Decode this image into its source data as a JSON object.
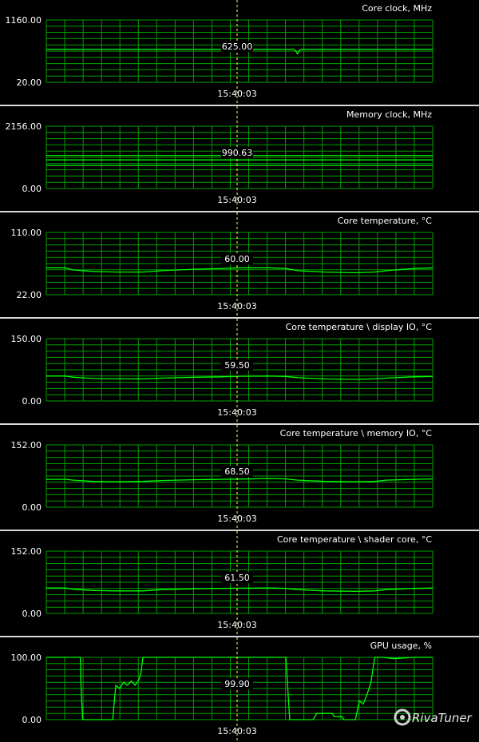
{
  "logo_text": "RivaTuner",
  "colors": {
    "background": "#000000",
    "grid": "#00a000",
    "trace": "#00ff00",
    "cursor": "#ffff66",
    "text": "#ffffff",
    "separator": "#d8d8d8"
  },
  "chart_data": [
    {
      "type": "line",
      "title": "Core clock, MHz",
      "ymax_label": "1160.00",
      "ymin_label": "20.00",
      "ylim": [
        20,
        1160
      ],
      "cursor_value": "625.00",
      "cursor_time": "15:40:03",
      "series": [
        {
          "x": [
            0,
            0.6,
            0.64,
            0.645,
            0.65,
            0.655,
            0.66,
            0.7,
            1
          ],
          "values": [
            625,
            625,
            625,
            600,
            540,
            600,
            625,
            625,
            625
          ]
        }
      ]
    },
    {
      "type": "line",
      "title": "Memory clock, MHz",
      "ymax_label": "2156.00",
      "ymin_label": "0.00",
      "ylim": [
        0,
        2156
      ],
      "cursor_value": "990.63",
      "cursor_time": "15:40:03",
      "series": [
        {
          "x": [
            0,
            1
          ],
          "values": [
            990.63,
            990.63
          ]
        }
      ]
    },
    {
      "type": "line",
      "title": "Core temperature, °C",
      "ymax_label": "110.00",
      "ymin_label": "22.00",
      "ylim": [
        22,
        110
      ],
      "cursor_value": "60.00",
      "cursor_time": "15:40:03",
      "series": [
        {
          "x": [
            0,
            0.05,
            0.07,
            0.12,
            0.18,
            0.25,
            0.3,
            0.38,
            0.45,
            0.5,
            0.58,
            0.62,
            0.65,
            0.72,
            0.8,
            0.85,
            0.88,
            0.95,
            1
          ],
          "values": [
            60,
            60,
            57,
            55,
            54,
            54,
            56,
            58,
            59,
            60,
            60,
            59,
            56,
            54,
            53,
            54,
            56,
            59,
            60
          ]
        }
      ]
    },
    {
      "type": "line",
      "title": "Core temperature \\ display IO, °C",
      "ymax_label": "150.00",
      "ymin_label": "0.00",
      "ylim": [
        0,
        150
      ],
      "cursor_value": "59.50",
      "cursor_time": "15:40:03",
      "series": [
        {
          "x": [
            0,
            0.05,
            0.07,
            0.12,
            0.18,
            0.25,
            0.3,
            0.38,
            0.45,
            0.5,
            0.58,
            0.62,
            0.65,
            0.72,
            0.8,
            0.85,
            0.88,
            0.95,
            1
          ],
          "values": [
            60,
            60,
            57,
            54,
            53,
            53,
            55,
            57,
            58,
            59.5,
            60,
            59,
            56,
            53,
            52,
            53,
            55,
            58,
            59
          ]
        }
      ]
    },
    {
      "type": "line",
      "title": "Core temperature \\ memory IO, °C",
      "ymax_label": "152.00",
      "ymin_label": "0.00",
      "ylim": [
        0,
        152
      ],
      "cursor_value": "68.50",
      "cursor_time": "15:40:03",
      "series": [
        {
          "x": [
            0,
            0.05,
            0.07,
            0.12,
            0.18,
            0.25,
            0.3,
            0.38,
            0.45,
            0.5,
            0.58,
            0.62,
            0.65,
            0.72,
            0.8,
            0.85,
            0.88,
            0.95,
            1
          ],
          "values": [
            68,
            68,
            66,
            63,
            62,
            63,
            65,
            67,
            68,
            68.5,
            70,
            69,
            66,
            63,
            62,
            63,
            66,
            68,
            69
          ]
        }
      ]
    },
    {
      "type": "line",
      "title": "Core temperature \\ shader core, °C",
      "ymax_label": "152.00",
      "ymin_label": "0.00",
      "ylim": [
        0,
        152
      ],
      "cursor_value": "61.50",
      "cursor_time": "15:40:03",
      "series": [
        {
          "x": [
            0,
            0.05,
            0.07,
            0.12,
            0.18,
            0.25,
            0.3,
            0.38,
            0.45,
            0.5,
            0.58,
            0.62,
            0.65,
            0.72,
            0.8,
            0.85,
            0.88,
            0.95,
            1
          ],
          "values": [
            62,
            62,
            59,
            56,
            55,
            55,
            58,
            60,
            61,
            61.5,
            62,
            61,
            58,
            55,
            54,
            55,
            58,
            61,
            62
          ]
        }
      ]
    },
    {
      "type": "line",
      "title": "GPU usage, %",
      "ymax_label": "100.00",
      "ymin_label": "0.00",
      "ylim": [
        0,
        100
      ],
      "cursor_value": "99.90",
      "cursor_time": "15:40:03",
      "series": [
        {
          "x": [
            0,
            0.082,
            0.088,
            0.09,
            0.094,
            0.172,
            0.176,
            0.18,
            0.19,
            0.2,
            0.21,
            0.22,
            0.23,
            0.24,
            0.245,
            0.25,
            0.6,
            0.62,
            0.63,
            0.69,
            0.7,
            0.72,
            0.74,
            0.745,
            0.765,
            0.77,
            0.8,
            0.81,
            0.82,
            0.83,
            0.84,
            0.85,
            0.87,
            0.9,
            0.95,
            1
          ],
          "values": [
            100,
            100,
            100,
            50,
            0,
            0,
            30,
            55,
            50,
            60,
            55,
            62,
            55,
            65,
            75,
            100,
            100,
            100,
            0,
            0,
            10,
            10,
            10,
            5,
            5,
            0,
            0,
            30,
            25,
            40,
            60,
            100,
            100,
            98,
            100,
            100
          ]
        }
      ]
    }
  ]
}
